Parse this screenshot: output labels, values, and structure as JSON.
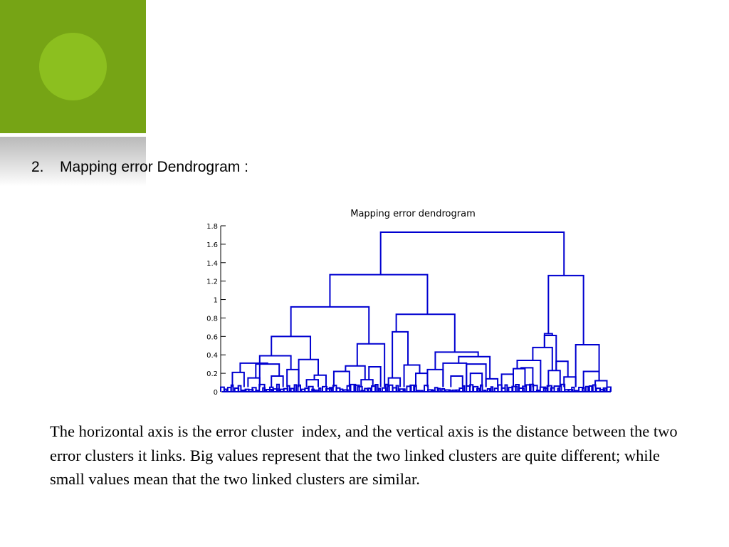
{
  "slide": {
    "accent_color": "#76a415",
    "accent_circle_color": "#8cbf1f",
    "heading_number": "2.",
    "heading_text": "Mapping error Dendrogram :",
    "body_text": "The horizontal axis is the error cluster  index, and the vertical axis is the distance between the two error clusters it links. Big values represent that the two linked clusters are quite different; while small values mean that the two linked clusters are similar."
  },
  "chart_data": {
    "type": "dendrogram",
    "title": "Mapping error dendrogram",
    "xlabel": "",
    "ylabel": "",
    "ylim": [
      0,
      1.8
    ],
    "y_ticks": [
      "0",
      "0.2",
      "0.4",
      "0.6",
      "0.8",
      "1",
      "1.2",
      "1.4",
      "1.6",
      "1.8"
    ],
    "line_color": "#0000d0",
    "merges_major": [
      {
        "height": 1.73,
        "left": 0.41,
        "right": 0.88
      },
      {
        "height": 1.27,
        "left": 0.28,
        "right": 0.53
      },
      {
        "height": 1.26,
        "left": 0.84,
        "right": 0.93
      },
      {
        "height": 0.92,
        "left": 0.18,
        "right": 0.38
      },
      {
        "height": 0.84,
        "left": 0.45,
        "right": 0.6
      },
      {
        "height": 0.65,
        "left": 0.44,
        "right": 0.48
      },
      {
        "height": 0.63,
        "left": 0.83,
        "right": 0.85
      },
      {
        "height": 0.61,
        "left": 0.83,
        "right": 0.86
      },
      {
        "height": 0.6,
        "left": 0.13,
        "right": 0.23
      },
      {
        "height": 0.52,
        "left": 0.35,
        "right": 0.42
      },
      {
        "height": 0.51,
        "left": 0.91,
        "right": 0.97
      },
      {
        "height": 0.48,
        "left": 0.8,
        "right": 0.85
      },
      {
        "height": 0.43,
        "left": 0.55,
        "right": 0.66
      },
      {
        "height": 0.39,
        "left": 0.1,
        "right": 0.18
      },
      {
        "height": 0.38,
        "left": 0.61,
        "right": 0.69
      },
      {
        "height": 0.35,
        "left": 0.2,
        "right": 0.25
      },
      {
        "height": 0.34,
        "left": 0.76,
        "right": 0.82
      },
      {
        "height": 0.33,
        "left": 0.86,
        "right": 0.89
      },
      {
        "height": 0.31,
        "left": 0.05,
        "right": 0.12
      },
      {
        "height": 0.31,
        "left": 0.57,
        "right": 0.63
      },
      {
        "height": 0.3,
        "left": 0.09,
        "right": 0.15
      },
      {
        "height": 0.3,
        "left": 0.63,
        "right": 0.68
      },
      {
        "height": 0.29,
        "left": 0.47,
        "right": 0.51
      },
      {
        "height": 0.28,
        "left": 0.32,
        "right": 0.37
      },
      {
        "height": 0.27,
        "left": 0.38,
        "right": 0.41
      },
      {
        "height": 0.26,
        "left": 0.77,
        "right": 0.8
      },
      {
        "height": 0.25,
        "left": 0.75,
        "right": 0.78
      },
      {
        "height": 0.24,
        "left": 0.17,
        "right": 0.2
      },
      {
        "height": 0.24,
        "left": 0.53,
        "right": 0.57
      },
      {
        "height": 0.23,
        "left": 0.84,
        "right": 0.87
      },
      {
        "height": 0.22,
        "left": 0.29,
        "right": 0.33
      },
      {
        "height": 0.22,
        "left": 0.93,
        "right": 0.97
      },
      {
        "height": 0.21,
        "left": 0.03,
        "right": 0.06
      },
      {
        "height": 0.2,
        "left": 0.5,
        "right": 0.53
      },
      {
        "height": 0.2,
        "left": 0.64,
        "right": 0.67
      },
      {
        "height": 0.19,
        "left": 0.72,
        "right": 0.75
      },
      {
        "height": 0.18,
        "left": 0.24,
        "right": 0.27
      },
      {
        "height": 0.17,
        "left": 0.13,
        "right": 0.16
      },
      {
        "height": 0.17,
        "left": 0.59,
        "right": 0.62
      },
      {
        "height": 0.16,
        "left": 0.88,
        "right": 0.91
      },
      {
        "height": 0.15,
        "left": 0.07,
        "right": 0.1
      },
      {
        "height": 0.15,
        "left": 0.43,
        "right": 0.46
      },
      {
        "height": 0.14,
        "left": 0.68,
        "right": 0.71
      },
      {
        "height": 0.13,
        "left": 0.22,
        "right": 0.25
      },
      {
        "height": 0.13,
        "left": 0.36,
        "right": 0.39
      },
      {
        "height": 0.12,
        "left": 0.96,
        "right": 0.99
      }
    ]
  }
}
